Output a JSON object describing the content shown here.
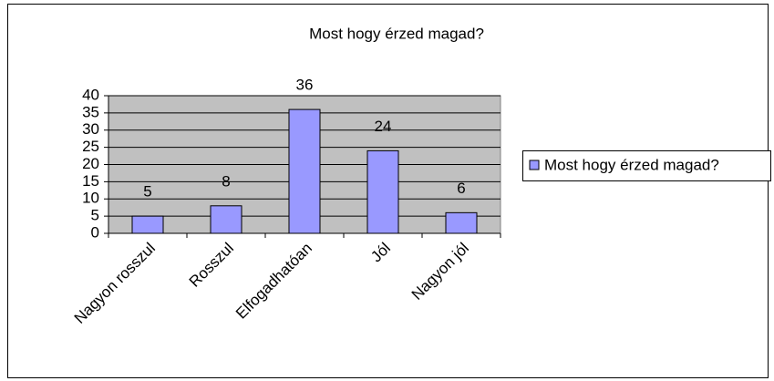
{
  "chart_data": {
    "type": "bar",
    "title": "Most hogy érzed magad?",
    "categories": [
      "Nagyon rosszul",
      "Rosszul",
      "Elfogadhatóan",
      "Jól",
      "Nagyon jól"
    ],
    "series": [
      {
        "name": "Most hogy érzed magad?",
        "color": "#9999ff",
        "values": [
          5,
          8,
          36,
          24,
          6
        ]
      }
    ],
    "ylim": [
      0,
      40
    ],
    "yticks": [
      0,
      5,
      10,
      15,
      20,
      25,
      30,
      35,
      40
    ],
    "grid": true,
    "legend": "right"
  }
}
